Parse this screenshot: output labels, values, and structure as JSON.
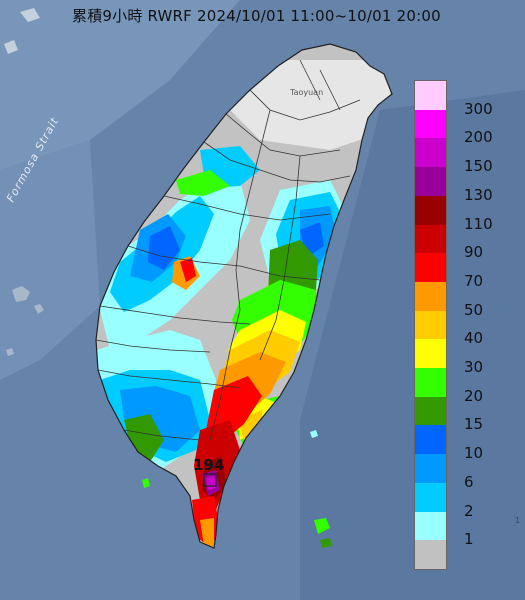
{
  "title": "累積9小時 RWRF 2024/10/01 11:00~10/01 20:00",
  "sea_label": "Formosa Strait",
  "city_label": "Taoyuan",
  "peak_value": "194",
  "edge_fragment": "1",
  "colors": {
    "sea": "#5f7fa6",
    "sea_light": "#7f9dc0",
    "land_gray": "#c2c2c2",
    "land_white": "#e8e8e8"
  },
  "legend": {
    "labels": [
      "300",
      "200",
      "150",
      "130",
      "110",
      "90",
      "70",
      "50",
      "40",
      "30",
      "20",
      "15",
      "10",
      "6",
      "2",
      "1"
    ],
    "colors": [
      "#ffccff",
      "#ff00ff",
      "#cc00cc",
      "#990099",
      "#990000",
      "#cc0000",
      "#ff0000",
      "#ff9900",
      "#ffcc00",
      "#ffff00",
      "#33ff00",
      "#339900",
      "#0066ff",
      "#0099ff",
      "#00ccff",
      "#99ffff",
      "#c1c1c1"
    ]
  }
}
